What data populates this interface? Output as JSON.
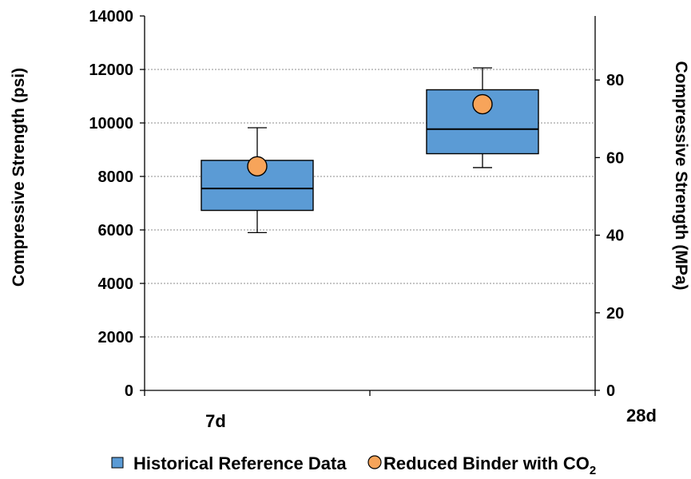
{
  "chart_data": {
    "type": "box",
    "categories": [
      "7d",
      "28d"
    ],
    "series": [
      {
        "name": "Historical Reference Data",
        "kind": "box",
        "color": "#5b9bd5",
        "boxes": [
          {
            "category": "7d",
            "min": 5900,
            "q1": 6730,
            "median": 7550,
            "q3": 8600,
            "max": 9820
          },
          {
            "category": "28d",
            "min": 8330,
            "q1": 8850,
            "median": 9770,
            "q3": 11240,
            "max": 12060
          }
        ]
      },
      {
        "name": "Reduced Binder with CO",
        "name_subscript": "2",
        "kind": "point",
        "color": "#f7a45a",
        "points": [
          {
            "category": "7d",
            "value": 8380
          },
          {
            "category": "28d",
            "value": 10700
          }
        ]
      }
    ],
    "y_left": {
      "label": "Compressive Strength (psi)",
      "range": [
        0,
        14000
      ],
      "ticks": [
        0,
        2000,
        4000,
        6000,
        8000,
        10000,
        12000,
        14000
      ]
    },
    "y_right": {
      "label": "Compressive Strength (MPa)",
      "range": [
        0,
        96.5
      ],
      "ticks": [
        0,
        20,
        40,
        60,
        80
      ]
    },
    "grid": true,
    "legend_position": "bottom"
  }
}
